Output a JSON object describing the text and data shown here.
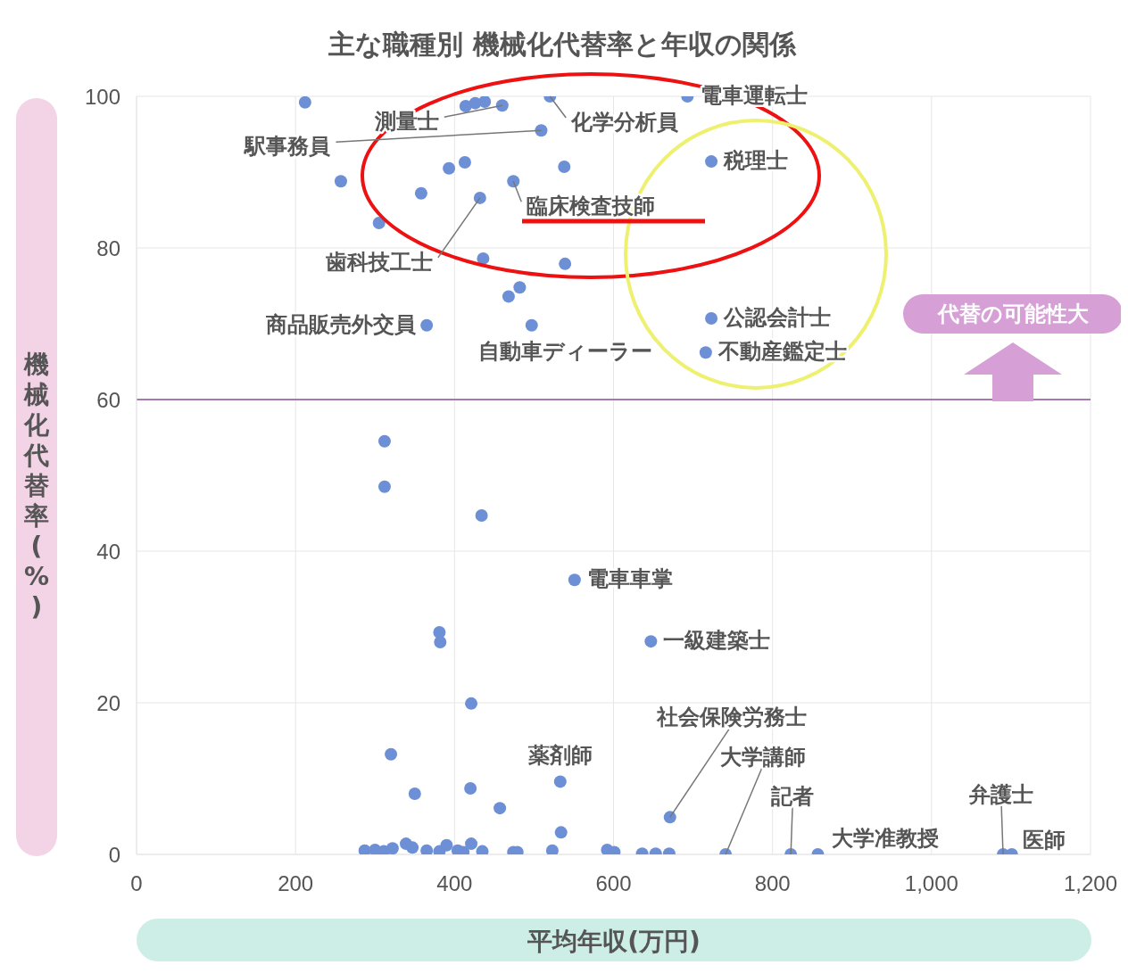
{
  "chart_data": {
    "type": "scatter",
    "title": "主な職種別 機械化代替率と年収の関係",
    "xlabel": "平均年収(万円)",
    "ylabel": "機械化代替率(%)",
    "xlim": [
      0,
      1200
    ],
    "xticks": [
      0,
      200,
      400,
      600,
      800,
      {
        "value": 1000,
        "label": "1,000"
      },
      {
        "value": 1200,
        "label": "1,200"
      }
    ],
    "ylim": [
      0,
      100
    ],
    "yticks": [
      0,
      20,
      40,
      60,
      80,
      100
    ],
    "grid": true,
    "marker": "circle",
    "series": [
      {
        "color": "#6d8fd6",
        "x": [
          212,
          257,
          305,
          358,
          365,
          393,
          413,
          432,
          436,
          414,
          426,
          438,
          460,
          509,
          520,
          538,
          474,
          539,
          468,
          482,
          497,
          693,
          723,
          723,
          716,
          312,
          312,
          434,
          551,
          381,
          382,
          421,
          320,
          350,
          420,
          457,
          533,
          534,
          671,
          647,
          287,
          300,
          311,
          322,
          339,
          347,
          365,
          381,
          390,
          404,
          411,
          421,
          435,
          474,
          479,
          523,
          592,
          601,
          636,
          653,
          670,
          741,
          823,
          857,
          1090,
          1101
        ],
        "values": [
          99.2,
          88.8,
          83.3,
          87.2,
          69.8,
          90.5,
          91.3,
          86.6,
          78.6,
          98.7,
          99.1,
          99.3,
          98.8,
          95.5,
          100,
          90.7,
          88.8,
          77.9,
          73.6,
          74.8,
          69.8,
          100,
          91.4,
          70.7,
          66.2,
          54.5,
          48.5,
          44.7,
          36.2,
          29.3,
          28,
          19.9,
          13.2,
          8,
          8.7,
          6.1,
          9.6,
          2.9,
          4.9,
          28.1,
          0.5,
          0.6,
          0.4,
          0.8,
          1.4,
          0.9,
          0.5,
          0.4,
          1.2,
          0.5,
          0.3,
          1.4,
          0.4,
          0.3,
          0.3,
          0.5,
          0.6,
          0.3,
          0.1,
          0.1,
          0.1,
          0,
          0,
          0,
          0,
          0
        ]
      }
    ],
    "ref_lines": [
      {
        "axis": "y",
        "value": 60,
        "color": "#a678b0"
      }
    ],
    "annotations": [
      {
        "text": "電車運転士",
        "x": 693,
        "y": 100
      },
      {
        "text": "化学分析員",
        "x": 520,
        "y": 100
      },
      {
        "text": "測量士",
        "x": 460,
        "y": 98.8
      },
      {
        "text": "駅事務員",
        "x": 509,
        "y": 95.5
      },
      {
        "text": "臨床検査技師",
        "x": 474,
        "y": 88.8
      },
      {
        "text": "税理士",
        "x": 723,
        "y": 91.4
      },
      {
        "text": "歯科技工士",
        "x": 432,
        "y": 86.6
      },
      {
        "text": "商品販売外交員",
        "x": 365,
        "y": 69.8
      },
      {
        "text": "自動車ディーラー",
        "x": 497,
        "y": 69.8
      },
      {
        "text": "公認会計士",
        "x": 723,
        "y": 70.7
      },
      {
        "text": "不動産鑑定士",
        "x": 716,
        "y": 66.2
      },
      {
        "text": "電車車掌",
        "x": 551,
        "y": 36.2
      },
      {
        "text": "一級建築士",
        "x": 647,
        "y": 28.1
      },
      {
        "text": "薬剤師",
        "x": 533,
        "y": 9.6
      },
      {
        "text": "社会保険労務士",
        "x": 671,
        "y": 4.9
      },
      {
        "text": "大学講師",
        "x": 741,
        "y": 0
      },
      {
        "text": "記者",
        "x": 823,
        "y": 0
      },
      {
        "text": "大学准教授",
        "x": 857,
        "y": 0
      },
      {
        "text": "弁護士",
        "x": 1090,
        "y": 0
      },
      {
        "text": "医師",
        "x": 1101,
        "y": 0
      },
      "代替の可能性大"
    ]
  }
}
